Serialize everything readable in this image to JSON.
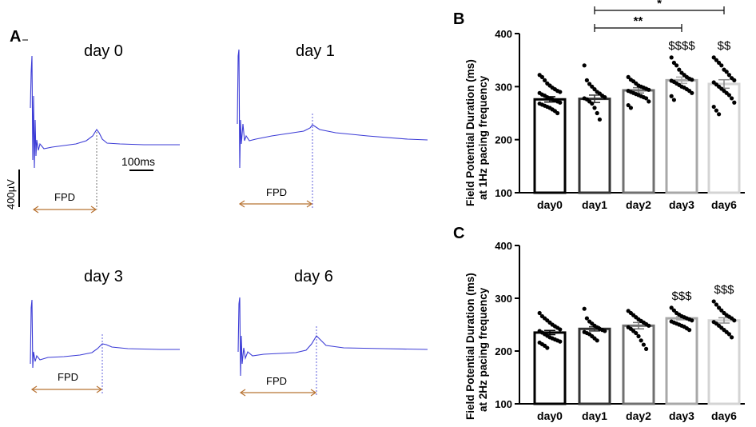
{
  "panel_a": {
    "letter": "A",
    "scale_time": "100ms",
    "scale_voltage": "400µV",
    "traces": [
      {
        "title": "day 0",
        "fpd_label": "FPD"
      },
      {
        "title": "day 1",
        "fpd_label": "FPD"
      },
      {
        "title": "day 3",
        "fpd_label": "FPD"
      },
      {
        "title": "day 6",
        "fpd_label": "FPD"
      }
    ],
    "colors": {
      "trace": "#3b3bd6",
      "fpd_arrow": "#b87333"
    }
  },
  "chart_data": [
    {
      "panel": "B",
      "type": "bar",
      "ylabel_line1": "Field Potential Duration (ms)",
      "ylabel_line2": "at 1Hz pacing frequency",
      "ylim": [
        100,
        400
      ],
      "yticks": [
        "100",
        "200",
        "300",
        "400"
      ],
      "categories": [
        "day0",
        "day1",
        "day2",
        "day3",
        "day6"
      ],
      "values": [
        276,
        277,
        293,
        312,
        305
      ],
      "sem": [
        5,
        7,
        5,
        6,
        8
      ],
      "bar_colors": [
        "#000000",
        "#333333",
        "#707070",
        "#a8a8a8",
        "#d4d4d4"
      ],
      "points": [
        [
          322,
          318,
          312,
          306,
          302,
          298,
          295,
          292,
          290,
          288,
          285,
          283,
          280,
          278,
          276,
          274,
          272,
          270,
          268,
          266,
          264,
          262,
          260,
          257,
          254,
          250
        ],
        [
          340,
          312,
          305,
          300,
          295,
          290,
          287,
          283,
          280,
          278,
          276,
          272,
          268,
          260,
          250,
          238
        ],
        [
          318,
          313,
          310,
          306,
          302,
          300,
          298,
          296,
          294,
          292,
          290,
          288,
          286,
          284,
          282,
          280,
          278,
          272,
          265,
          260
        ],
        [
          355,
          345,
          340,
          332,
          326,
          322,
          318,
          315,
          313,
          311,
          309,
          306,
          303,
          300,
          298,
          295,
          292,
          288,
          282,
          275
        ],
        [
          355,
          350,
          345,
          340,
          332,
          328,
          322,
          316,
          312,
          308,
          304,
          300,
          296,
          292,
          288,
          284,
          278,
          270,
          262,
          255,
          248
        ]
      ],
      "significance": [
        {
          "label": "$$$$",
          "category": "day3"
        },
        {
          "label": "$$",
          "category": "day6"
        }
      ],
      "brackets": [
        {
          "from": "day1",
          "to": "day6",
          "label": "*"
        },
        {
          "from": "day1",
          "to": "day3",
          "label": "**"
        }
      ]
    },
    {
      "panel": "C",
      "type": "bar",
      "ylabel_line1": "Field Potential Duration (ms)",
      "ylabel_line2": "at 2Hz pacing frequency",
      "ylim": [
        100,
        400
      ],
      "yticks": [
        "100",
        "200",
        "300",
        "400"
      ],
      "categories": [
        "day0",
        "day1",
        "day2",
        "day3",
        "day6"
      ],
      "values": [
        235,
        242,
        248,
        262,
        258
      ],
      "sem": [
        4,
        4,
        6,
        3,
        5
      ],
      "bar_colors": [
        "#000000",
        "#333333",
        "#707070",
        "#a8a8a8",
        "#d4d4d4"
      ],
      "points": [
        [
          272,
          266,
          262,
          258,
          254,
          250,
          247,
          244,
          241,
          238,
          235,
          232,
          229,
          226,
          224,
          222,
          220,
          218,
          216,
          213,
          210,
          206
        ],
        [
          280,
          262,
          256,
          252,
          248,
          245,
          242,
          240,
          238,
          236,
          234,
          232,
          228,
          224,
          220
        ],
        [
          276,
          272,
          268,
          264,
          260,
          257,
          254,
          251,
          248,
          245,
          242,
          238,
          234,
          228,
          220,
          212,
          204
        ],
        [
          282,
          277,
          272,
          269,
          266,
          264,
          262,
          260,
          258,
          256,
          254,
          252,
          250,
          248,
          246,
          243,
          240
        ],
        [
          294,
          288,
          282,
          277,
          272,
          268,
          265,
          262,
          258,
          255,
          252,
          248,
          244,
          240,
          236,
          232,
          226
        ]
      ],
      "significance": [
        {
          "label": "$$$",
          "category": "day3"
        },
        {
          "label": "$$$",
          "category": "day6"
        }
      ],
      "brackets": []
    }
  ]
}
